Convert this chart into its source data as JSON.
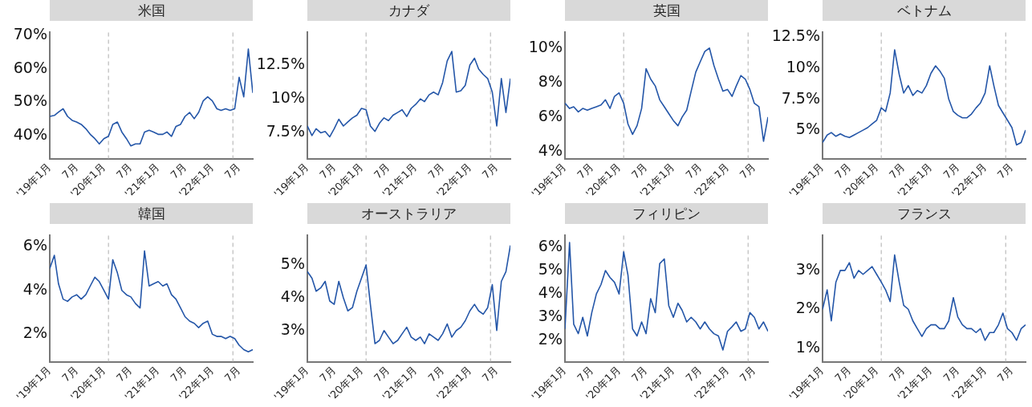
{
  "chart_data": [
    {
      "type": "line",
      "title": "米国",
      "x": [
        "2019-01",
        "2019-02",
        "2019-03",
        "2019-04",
        "2019-05",
        "2019-06",
        "2019-07",
        "2019-08",
        "2019-09",
        "2019-10",
        "2019-11",
        "2019-12",
        "2020-01",
        "2020-02",
        "2020-03",
        "2020-04",
        "2020-05",
        "2020-06",
        "2020-07",
        "2020-08",
        "2020-09",
        "2020-10",
        "2020-11",
        "2020-12",
        "2021-01",
        "2021-02",
        "2021-03",
        "2021-04",
        "2021-05",
        "2021-06",
        "2021-07",
        "2021-08",
        "2021-09",
        "2021-10",
        "2021-11",
        "2021-12",
        "2022-01",
        "2022-02",
        "2022-03",
        "2022-04",
        "2022-05",
        "2022-06",
        "2022-07",
        "2022-08",
        "2022-09",
        "2022-10"
      ],
      "xlim": [
        "2019-01",
        "2022-10"
      ],
      "xticks": [
        {
          "value": "2019-01",
          "label": "'19年1月"
        },
        {
          "value": "2019-07",
          "label": "7月"
        },
        {
          "value": "2020-01",
          "label": "'20年1月"
        },
        {
          "value": "2020-07",
          "label": "7月"
        },
        {
          "value": "2021-01",
          "label": "'21年1月"
        },
        {
          "value": "2021-07",
          "label": "7月"
        },
        {
          "value": "2022-01",
          "label": "'22年1月"
        },
        {
          "value": "2022-07",
          "label": "7月"
        }
      ],
      "ylim": [
        33,
        71
      ],
      "yticks": [
        {
          "value": 40,
          "label": "40%"
        },
        {
          "value": 50,
          "label": "50%"
        },
        {
          "value": 60,
          "label": "60%"
        },
        {
          "value": 70,
          "label": "70%"
        }
      ],
      "ref_lines": [
        {
          "axis": "x",
          "value": "2020-02-01",
          "color": "#bbbbbb",
          "line_style": "dashed"
        },
        {
          "axis": "x",
          "value": "2022-05-20",
          "color": "#bbbbbb",
          "line_style": "dashed"
        }
      ],
      "series": [
        {
          "color": "#2456a8",
          "values": [
            45.7,
            46,
            47,
            48,
            45.7,
            44.5,
            44,
            43.3,
            42,
            40.3,
            39,
            37.4,
            39,
            39.7,
            43.3,
            44,
            41,
            39,
            36.8,
            37.4,
            37.4,
            41,
            41.5,
            41,
            40.3,
            40.3,
            41,
            39.7,
            42.7,
            43.3,
            45.7,
            46.9,
            45,
            46.9,
            50.4,
            51.6,
            50.4,
            48,
            47.5,
            48,
            47.5,
            48,
            57.5,
            51.6,
            66,
            52.8
          ]
        }
      ]
    },
    {
      "type": "line",
      "title": "カナダ",
      "x": [
        "2019-01",
        "2019-02",
        "2019-03",
        "2019-04",
        "2019-05",
        "2019-06",
        "2019-07",
        "2019-08",
        "2019-09",
        "2019-10",
        "2019-11",
        "2019-12",
        "2020-01",
        "2020-02",
        "2020-03",
        "2020-04",
        "2020-05",
        "2020-06",
        "2020-07",
        "2020-08",
        "2020-09",
        "2020-10",
        "2020-11",
        "2020-12",
        "2021-01",
        "2021-02",
        "2021-03",
        "2021-04",
        "2021-05",
        "2021-06",
        "2021-07",
        "2021-08",
        "2021-09",
        "2021-10",
        "2021-11",
        "2021-12",
        "2022-01",
        "2022-02",
        "2022-03",
        "2022-04",
        "2022-05",
        "2022-06",
        "2022-07",
        "2022-08",
        "2022-09",
        "2022-10"
      ],
      "xlim": [
        "2019-01",
        "2022-10"
      ],
      "xticks": [
        {
          "value": "2019-01",
          "label": "'19年1月"
        },
        {
          "value": "2019-07",
          "label": "7月"
        },
        {
          "value": "2020-01",
          "label": "'20年1月"
        },
        {
          "value": "2020-07",
          "label": "7月"
        },
        {
          "value": "2021-01",
          "label": "'21年1月"
        },
        {
          "value": "2021-07",
          "label": "7月"
        },
        {
          "value": "2022-01",
          "label": "'22年1月"
        },
        {
          "value": "2022-07",
          "label": "7月"
        }
      ],
      "ylim": [
        5.6,
        14.9
      ],
      "yticks": [
        {
          "value": 7.5,
          "label": "7.5%"
        },
        {
          "value": 10,
          "label": "10%"
        },
        {
          "value": 12.5,
          "label": "12.5%"
        }
      ],
      "ref_lines": [
        {
          "axis": "x",
          "value": "2020-02-01",
          "color": "#bbbbbb",
          "line_style": "dashed"
        },
        {
          "axis": "x",
          "value": "2022-05-20",
          "color": "#bbbbbb",
          "line_style": "dashed"
        }
      ],
      "series": [
        {
          "color": "#2456a8",
          "values": [
            8.0,
            7.3,
            7.8,
            7.5,
            7.6,
            7.2,
            7.8,
            8.5,
            8.0,
            8.3,
            8.6,
            8.8,
            9.3,
            9.2,
            8.0,
            7.6,
            8.2,
            8.6,
            8.4,
            8.8,
            9.0,
            9.2,
            8.7,
            9.3,
            9.6,
            10.0,
            9.8,
            10.3,
            10.5,
            10.3,
            11.2,
            12.8,
            13.5,
            10.5,
            10.6,
            11.0,
            12.5,
            13.0,
            12.2,
            11.8,
            11.5,
            10.5,
            8.0,
            11.5,
            9.0,
            11.5
          ]
        }
      ]
    },
    {
      "type": "line",
      "title": "英国",
      "x": [
        "2019-01",
        "2019-02",
        "2019-03",
        "2019-04",
        "2019-05",
        "2019-06",
        "2019-07",
        "2019-08",
        "2019-09",
        "2019-10",
        "2019-11",
        "2019-12",
        "2020-01",
        "2020-02",
        "2020-03",
        "2020-04",
        "2020-05",
        "2020-06",
        "2020-07",
        "2020-08",
        "2020-09",
        "2020-10",
        "2020-11",
        "2020-12",
        "2021-01",
        "2021-02",
        "2021-03",
        "2021-04",
        "2021-05",
        "2021-06",
        "2021-07",
        "2021-08",
        "2021-09",
        "2021-10",
        "2021-11",
        "2021-12",
        "2022-01",
        "2022-02",
        "2022-03",
        "2022-04",
        "2022-05",
        "2022-06",
        "2022-07",
        "2022-08",
        "2022-09",
        "2022-10"
      ],
      "xlim": [
        "2019-01",
        "2022-10"
      ],
      "xticks": [
        {
          "value": "2019-01",
          "label": "'19年1月"
        },
        {
          "value": "2019-07",
          "label": "7月"
        },
        {
          "value": "2020-01",
          "label": "'20年1月"
        },
        {
          "value": "2020-07",
          "label": "7月"
        },
        {
          "value": "2021-01",
          "label": "'21年1月"
        },
        {
          "value": "2021-07",
          "label": "7月"
        },
        {
          "value": "2022-01",
          "label": "'22年1月"
        },
        {
          "value": "2022-07",
          "label": "7月"
        }
      ],
      "ylim": [
        3.6,
        10.9
      ],
      "yticks": [
        {
          "value": 4,
          "label": "4%"
        },
        {
          "value": 6,
          "label": "6%"
        },
        {
          "value": 8,
          "label": "8%"
        },
        {
          "value": 10,
          "label": "10%"
        }
      ],
      "ref_lines": [
        {
          "axis": "x",
          "value": "2020-02-01",
          "color": "#bbbbbb",
          "line_style": "dashed"
        },
        {
          "axis": "x",
          "value": "2022-05-20",
          "color": "#bbbbbb",
          "line_style": "dashed"
        }
      ],
      "series": [
        {
          "color": "#2456a8",
          "values": [
            6.8,
            6.5,
            6.6,
            6.3,
            6.5,
            6.4,
            6.5,
            6.6,
            6.7,
            7.0,
            6.5,
            7.2,
            7.4,
            6.8,
            5.6,
            5.0,
            5.5,
            6.5,
            8.8,
            8.2,
            7.8,
            7.0,
            6.6,
            6.2,
            5.8,
            5.5,
            6.0,
            6.4,
            7.5,
            8.6,
            9.2,
            9.8,
            10.0,
            9.0,
            8.2,
            7.5,
            7.6,
            7.2,
            7.8,
            8.4,
            8.2,
            7.6,
            6.8,
            6.6,
            4.6,
            6.0
          ]
        }
      ]
    },
    {
      "type": "line",
      "title": "ベトナム",
      "x": [
        "2019-01",
        "2019-02",
        "2019-03",
        "2019-04",
        "2019-05",
        "2019-06",
        "2019-07",
        "2019-08",
        "2019-09",
        "2019-10",
        "2019-11",
        "2019-12",
        "2020-01",
        "2020-02",
        "2020-03",
        "2020-04",
        "2020-05",
        "2020-06",
        "2020-07",
        "2020-08",
        "2020-09",
        "2020-10",
        "2020-11",
        "2020-12",
        "2021-01",
        "2021-02",
        "2021-03",
        "2021-04",
        "2021-05",
        "2021-06",
        "2021-07",
        "2021-08",
        "2021-09",
        "2021-10",
        "2021-11",
        "2021-12",
        "2022-01",
        "2022-02",
        "2022-03",
        "2022-04",
        "2022-05",
        "2022-06",
        "2022-07",
        "2022-08",
        "2022-09",
        "2022-10"
      ],
      "xlim": [
        "2019-01",
        "2022-10"
      ],
      "xticks": [
        {
          "value": "2019-01",
          "label": "'19年1月"
        },
        {
          "value": "2019-07",
          "label": "7月"
        },
        {
          "value": "2020-01",
          "label": "'20年1月"
        },
        {
          "value": "2020-07",
          "label": "7月"
        },
        {
          "value": "2021-01",
          "label": "'21年1月"
        },
        {
          "value": "2021-07",
          "label": "7月"
        },
        {
          "value": "2022-01",
          "label": "'22年1月"
        },
        {
          "value": "2022-07",
          "label": "7月"
        }
      ],
      "ylim": [
        2.7,
        12.9
      ],
      "yticks": [
        {
          "value": 5,
          "label": "5%"
        },
        {
          "value": 7.5,
          "label": "7.5%"
        },
        {
          "value": 10,
          "label": "10%"
        },
        {
          "value": 12.5,
          "label": "12.5%"
        }
      ],
      "ref_lines": [
        {
          "axis": "x",
          "value": "2020-02-01",
          "color": "#bbbbbb",
          "line_style": "dashed"
        },
        {
          "axis": "x",
          "value": "2022-05-20",
          "color": "#bbbbbb",
          "line_style": "dashed"
        }
      ],
      "series": [
        {
          "color": "#2456a8",
          "values": [
            4.0,
            4.6,
            4.8,
            4.5,
            4.7,
            4.5,
            4.4,
            4.6,
            4.8,
            5.0,
            5.2,
            5.5,
            5.8,
            6.8,
            6.5,
            8.0,
            11.5,
            9.5,
            8.0,
            8.6,
            7.8,
            8.2,
            8.0,
            8.6,
            9.6,
            10.2,
            9.8,
            9.2,
            7.5,
            6.5,
            6.2,
            6.0,
            6.0,
            6.3,
            6.8,
            7.2,
            8.0,
            10.2,
            8.6,
            7.0,
            6.4,
            5.8,
            5.2,
            3.8,
            4.0,
            5.0
          ]
        }
      ]
    },
    {
      "type": "line",
      "title": "韓国",
      "x": [
        "2019-01",
        "2019-02",
        "2019-03",
        "2019-04",
        "2019-05",
        "2019-06",
        "2019-07",
        "2019-08",
        "2019-09",
        "2019-10",
        "2019-11",
        "2019-12",
        "2020-01",
        "2020-02",
        "2020-03",
        "2020-04",
        "2020-05",
        "2020-06",
        "2020-07",
        "2020-08",
        "2020-09",
        "2020-10",
        "2020-11",
        "2020-12",
        "2021-01",
        "2021-02",
        "2021-03",
        "2021-04",
        "2021-05",
        "2021-06",
        "2021-07",
        "2021-08",
        "2021-09",
        "2021-10",
        "2021-11",
        "2021-12",
        "2022-01",
        "2022-02",
        "2022-03",
        "2022-04",
        "2022-05",
        "2022-06",
        "2022-07",
        "2022-08",
        "2022-09",
        "2022-10"
      ],
      "xlim": [
        "2019-01",
        "2022-10"
      ],
      "xticks": [
        {
          "value": "2019-01",
          "label": "'19年1月"
        },
        {
          "value": "2019-07",
          "label": "7月"
        },
        {
          "value": "2020-01",
          "label": "'20年1月"
        },
        {
          "value": "2020-07",
          "label": "7月"
        },
        {
          "value": "2021-01",
          "label": "'21年1月"
        },
        {
          "value": "2021-07",
          "label": "7月"
        },
        {
          "value": "2022-01",
          "label": "'22年1月"
        },
        {
          "value": "2022-07",
          "label": "7月"
        }
      ],
      "ylim": [
        0.75,
        6.5
      ],
      "yticks": [
        {
          "value": 2,
          "label": "2%"
        },
        {
          "value": 4,
          "label": "4%"
        },
        {
          "value": 6,
          "label": "6%"
        }
      ],
      "ref_lines": [
        {
          "axis": "x",
          "value": "2020-02-01",
          "color": "#bbbbbb",
          "line_style": "dashed"
        },
        {
          "axis": "x",
          "value": "2022-05-20",
          "color": "#bbbbbb",
          "line_style": "dashed"
        }
      ],
      "series": [
        {
          "color": "#2456a8",
          "values": [
            5.0,
            5.6,
            4.3,
            3.6,
            3.5,
            3.7,
            3.8,
            3.6,
            3.8,
            4.2,
            4.6,
            4.4,
            4.0,
            3.6,
            5.4,
            4.8,
            4.0,
            3.8,
            3.7,
            3.4,
            3.2,
            5.8,
            4.2,
            4.3,
            4.4,
            4.2,
            4.3,
            3.8,
            3.6,
            3.2,
            2.8,
            2.6,
            2.5,
            2.3,
            2.5,
            2.6,
            2.0,
            1.9,
            1.9,
            1.8,
            1.9,
            1.8,
            1.5,
            1.3,
            1.2,
            1.3
          ]
        }
      ]
    },
    {
      "type": "line",
      "title": "オーストラリア",
      "x": [
        "2019-01",
        "2019-02",
        "2019-03",
        "2019-04",
        "2019-05",
        "2019-06",
        "2019-07",
        "2019-08",
        "2019-09",
        "2019-10",
        "2019-11",
        "2019-12",
        "2020-01",
        "2020-02",
        "2020-03",
        "2020-04",
        "2020-05",
        "2020-06",
        "2020-07",
        "2020-08",
        "2020-09",
        "2020-10",
        "2020-11",
        "2020-12",
        "2021-01",
        "2021-02",
        "2021-03",
        "2021-04",
        "2021-05",
        "2021-06",
        "2021-07",
        "2021-08",
        "2021-09",
        "2021-10",
        "2021-11",
        "2021-12",
        "2022-01",
        "2022-02",
        "2022-03",
        "2022-04",
        "2022-05",
        "2022-06",
        "2022-07",
        "2022-08",
        "2022-09",
        "2022-10"
      ],
      "xlim": [
        "2019-01",
        "2022-10"
      ],
      "xticks": [
        {
          "value": "2019-01",
          "label": "'19年1月"
        },
        {
          "value": "2019-07",
          "label": "7月"
        },
        {
          "value": "2020-01",
          "label": "'20年1月"
        },
        {
          "value": "2020-07",
          "label": "7月"
        },
        {
          "value": "2021-01",
          "label": "'21年1月"
        },
        {
          "value": "2021-07",
          "label": "7月"
        },
        {
          "value": "2022-01",
          "label": "'22年1月"
        },
        {
          "value": "2022-07",
          "label": "7月"
        }
      ],
      "ylim": [
        2.05,
        5.9
      ],
      "yticks": [
        {
          "value": 3,
          "label": "3%"
        },
        {
          "value": 4,
          "label": "4%"
        },
        {
          "value": 5,
          "label": "5%"
        }
      ],
      "ref_lines": [
        {
          "axis": "x",
          "value": "2020-02-01",
          "color": "#bbbbbb",
          "line_style": "dashed"
        },
        {
          "axis": "x",
          "value": "2022-05-20",
          "color": "#bbbbbb",
          "line_style": "dashed"
        }
      ],
      "series": [
        {
          "color": "#2456a8",
          "values": [
            4.8,
            4.6,
            4.2,
            4.3,
            4.5,
            3.9,
            3.8,
            4.5,
            4.0,
            3.6,
            3.7,
            4.2,
            4.6,
            5.0,
            3.8,
            2.6,
            2.7,
            3.0,
            2.8,
            2.6,
            2.7,
            2.9,
            3.1,
            2.8,
            2.7,
            2.8,
            2.6,
            2.9,
            2.8,
            2.7,
            2.9,
            3.2,
            2.8,
            3.0,
            3.1,
            3.3,
            3.6,
            3.8,
            3.6,
            3.5,
            3.7,
            4.4,
            3.0,
            4.5,
            4.8,
            5.6
          ]
        }
      ]
    },
    {
      "type": "line",
      "title": "フィリピン",
      "x": [
        "2019-01",
        "2019-02",
        "2019-03",
        "2019-04",
        "2019-05",
        "2019-06",
        "2019-07",
        "2019-08",
        "2019-09",
        "2019-10",
        "2019-11",
        "2019-12",
        "2020-01",
        "2020-02",
        "2020-03",
        "2020-04",
        "2020-05",
        "2020-06",
        "2020-07",
        "2020-08",
        "2020-09",
        "2020-10",
        "2020-11",
        "2020-12",
        "2021-01",
        "2021-02",
        "2021-03",
        "2021-04",
        "2021-05",
        "2021-06",
        "2021-07",
        "2021-08",
        "2021-09",
        "2021-10",
        "2021-11",
        "2021-12",
        "2022-01",
        "2022-02",
        "2022-03",
        "2022-04",
        "2022-05",
        "2022-06",
        "2022-07",
        "2022-08",
        "2022-09",
        "2022-10"
      ],
      "xlim": [
        "2019-01",
        "2022-10"
      ],
      "xticks": [
        {
          "value": "2019-01",
          "label": "'19年1月"
        },
        {
          "value": "2019-07",
          "label": "7月"
        },
        {
          "value": "2020-01",
          "label": "'20年1月"
        },
        {
          "value": "2020-07",
          "label": "7月"
        },
        {
          "value": "2021-01",
          "label": "'21年1月"
        },
        {
          "value": "2021-07",
          "label": "7月"
        },
        {
          "value": "2022-01",
          "label": "'22年1月"
        },
        {
          "value": "2022-07",
          "label": "7月"
        }
      ],
      "ylim": [
        1.1,
        6.5
      ],
      "yticks": [
        {
          "value": 2,
          "label": "2%"
        },
        {
          "value": 3,
          "label": "3%"
        },
        {
          "value": 4,
          "label": "4%"
        },
        {
          "value": 5,
          "label": "5%"
        },
        {
          "value": 6,
          "label": "6%"
        }
      ],
      "ref_lines": [
        {
          "axis": "x",
          "value": "2020-02-01",
          "color": "#bbbbbb",
          "line_style": "dashed"
        },
        {
          "axis": "x",
          "value": "2022-05-20",
          "color": "#bbbbbb",
          "line_style": "dashed"
        }
      ],
      "series": [
        {
          "color": "#2456a8",
          "values": [
            2.5,
            6.2,
            2.7,
            2.3,
            3.0,
            2.2,
            3.2,
            4.0,
            4.4,
            5.0,
            4.7,
            4.5,
            4.0,
            5.8,
            4.8,
            2.5,
            2.2,
            2.8,
            2.3,
            3.8,
            3.2,
            5.3,
            5.5,
            3.5,
            3.0,
            3.6,
            3.3,
            2.8,
            3.0,
            2.8,
            2.5,
            2.8,
            2.5,
            2.3,
            2.2,
            1.6,
            2.4,
            2.6,
            2.8,
            2.4,
            2.5,
            3.2,
            3.0,
            2.5,
            2.8,
            2.4
          ]
        }
      ]
    },
    {
      "type": "line",
      "title": "フランス",
      "x": [
        "2019-01",
        "2019-02",
        "2019-03",
        "2019-04",
        "2019-05",
        "2019-06",
        "2019-07",
        "2019-08",
        "2019-09",
        "2019-10",
        "2019-11",
        "2019-12",
        "2020-01",
        "2020-02",
        "2020-03",
        "2020-04",
        "2020-05",
        "2020-06",
        "2020-07",
        "2020-08",
        "2020-09",
        "2020-10",
        "2020-11",
        "2020-12",
        "2021-01",
        "2021-02",
        "2021-03",
        "2021-04",
        "2021-05",
        "2021-06",
        "2021-07",
        "2021-08",
        "2021-09",
        "2021-10",
        "2021-11",
        "2021-12",
        "2022-01",
        "2022-02",
        "2022-03",
        "2022-04",
        "2022-05",
        "2022-06",
        "2022-07",
        "2022-08",
        "2022-09",
        "2022-10"
      ],
      "xlim": [
        "2019-01",
        "2022-10"
      ],
      "xticks": [
        {
          "value": "2019-01",
          "label": "'19年1月"
        },
        {
          "value": "2019-07",
          "label": "7月"
        },
        {
          "value": "2020-01",
          "label": "'20年1月"
        },
        {
          "value": "2020-07",
          "label": "7月"
        },
        {
          "value": "2021-01",
          "label": "'21年1月"
        },
        {
          "value": "2021-07",
          "label": "7月"
        },
        {
          "value": "2022-01",
          "label": "'22年1月"
        },
        {
          "value": "2022-07",
          "label": "7月"
        }
      ],
      "ylim": [
        0.65,
        3.9
      ],
      "yticks": [
        {
          "value": 1,
          "label": "1%"
        },
        {
          "value": 2,
          "label": "2%"
        },
        {
          "value": 3,
          "label": "3%"
        }
      ],
      "ref_lines": [
        {
          "axis": "x",
          "value": "2020-02-01",
          "color": "#bbbbbb",
          "line_style": "dashed"
        },
        {
          "axis": "x",
          "value": "2022-05-20",
          "color": "#bbbbbb",
          "line_style": "dashed"
        }
      ],
      "series": [
        {
          "color": "#2456a8",
          "values": [
            2.0,
            2.5,
            1.7,
            2.7,
            3.0,
            3.0,
            3.2,
            2.8,
            3.0,
            2.9,
            3.0,
            3.1,
            2.9,
            2.7,
            2.5,
            2.2,
            3.4,
            2.7,
            2.1,
            2.0,
            1.7,
            1.5,
            1.3,
            1.5,
            1.6,
            1.6,
            1.5,
            1.5,
            1.7,
            2.3,
            1.8,
            1.6,
            1.5,
            1.5,
            1.4,
            1.5,
            1.2,
            1.4,
            1.4,
            1.6,
            1.9,
            1.5,
            1.4,
            1.2,
            1.5,
            1.6
          ]
        }
      ]
    }
  ]
}
